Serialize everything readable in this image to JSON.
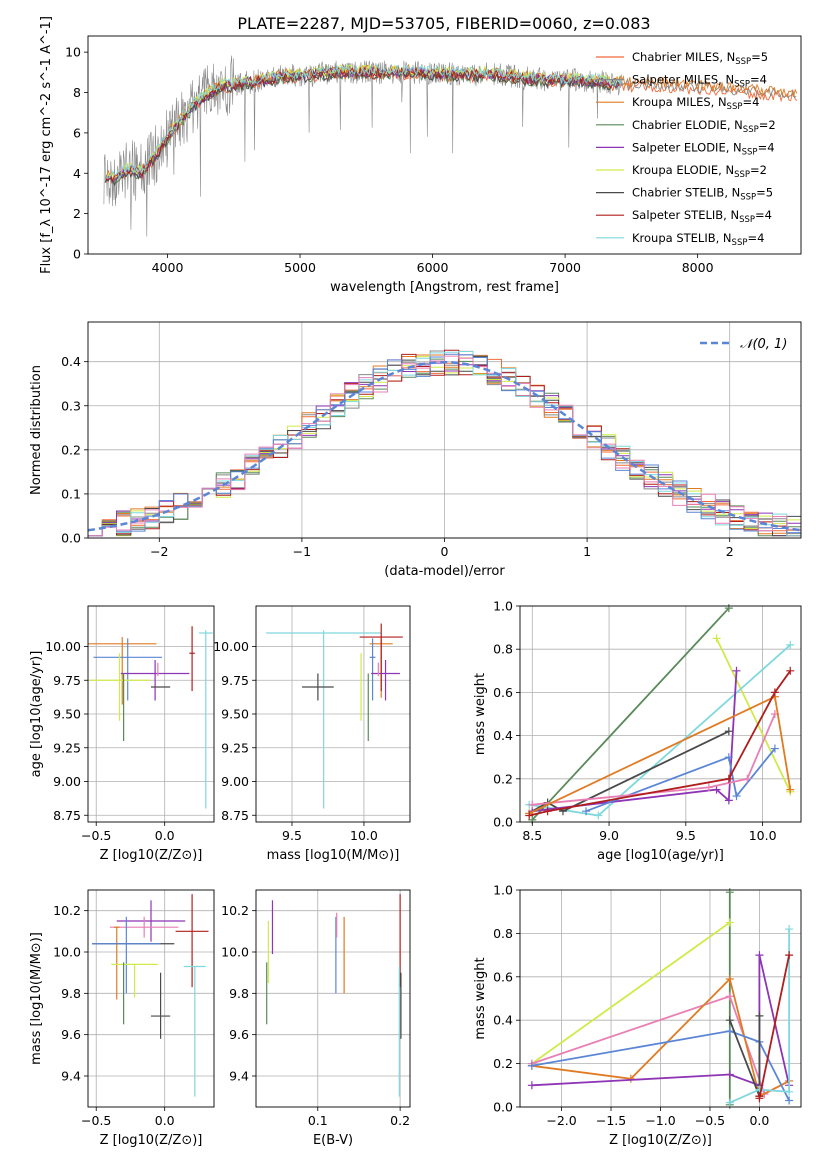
{
  "figure": {
    "title": "PLATE=2287, MJD=53705, FIBERID=0060, z=0.083"
  },
  "palette": {
    "Chabrier MILES": "#f26b3a",
    "Salpeter MILES": "#888888",
    "Kroupa MILES": "#e07b24",
    "Chabrier ELODIE": "#5a8a5a",
    "Salpeter ELODIE": "#8e35b5",
    "Kroupa ELODIE": "#d2e94a",
    "Chabrier STELIB": "#4a4a4a",
    "Salpeter STELIB": "#b01e1e",
    "Kroupa STELIB": "#7fd8dd",
    "blue": "#5b86d6",
    "pink": "#e97fb4"
  },
  "chart_data": [
    {
      "type": "line",
      "panel": "spectrum",
      "title": "PLATE=2287, MJD=53705, FIBERID=0060, z=0.083",
      "xlabel": "wavelength [Angstrom, rest frame]",
      "ylabel": "Flux [f_λ 10^-17 erg cm^-2 s^-1 A^-1]",
      "xlim": [
        3400,
        8780
      ],
      "ylim": [
        0,
        10.8
      ],
      "xticks": [
        4000,
        5000,
        6000,
        7000,
        8000
      ],
      "yticks": [
        0,
        2,
        4,
        6,
        8,
        10
      ],
      "continuum": {
        "x": [
          3500,
          3600,
          3700,
          3800,
          3900,
          4000,
          4100,
          4200,
          4300,
          4400,
          4500,
          4700,
          4900,
          5100,
          5300,
          5500,
          5700,
          5900,
          6100,
          6300,
          6500,
          6700,
          6900,
          7100,
          7300,
          7500,
          7700,
          7900,
          8100,
          8300,
          8500,
          8750
        ],
        "y": [
          4.0,
          3.7,
          4.2,
          4.0,
          4.8,
          5.8,
          6.6,
          7.4,
          7.9,
          8.3,
          8.4,
          8.6,
          8.8,
          8.9,
          9.0,
          9.0,
          9.0,
          9.0,
          8.9,
          8.9,
          8.9,
          8.7,
          8.6,
          8.6,
          8.5,
          8.4,
          8.4,
          8.3,
          8.2,
          8.1,
          8.0,
          7.9
        ]
      },
      "series": [
        {
          "name": "Chabrier MILES",
          "nssp": "5",
          "color_key": "Chabrier MILES"
        },
        {
          "name": "Salpeter MILES",
          "nssp": "4",
          "color_key": "Salpeter MILES"
        },
        {
          "name": "Kroupa MILES",
          "nssp": "4",
          "color_key": "Kroupa MILES"
        },
        {
          "name": "Chabrier ELODIE",
          "nssp": "2",
          "color_key": "Chabrier ELODIE"
        },
        {
          "name": "Salpeter ELODIE",
          "nssp": "4",
          "color_key": "Salpeter ELODIE"
        },
        {
          "name": "Kroupa ELODIE",
          "nssp": "2",
          "color_key": "Kroupa ELODIE"
        },
        {
          "name": "Chabrier STELIB",
          "nssp": "5",
          "color_key": "Chabrier STELIB"
        },
        {
          "name": "Salpeter STELIB",
          "nssp": "4",
          "color_key": "Salpeter STELIB"
        },
        {
          "name": "Kroupa STELIB",
          "nssp": "4",
          "color_key": "Kroupa STELIB"
        }
      ]
    },
    {
      "type": "line",
      "panel": "residuals",
      "xlabel": "(data-model)/error",
      "ylabel": "Normed distribution",
      "xlim": [
        -2.5,
        2.5
      ],
      "ylim": [
        0,
        0.49
      ],
      "xticks": [
        -2,
        -1,
        0,
        1,
        2
      ],
      "yticks": [
        0.0,
        0.1,
        0.2,
        0.3,
        0.4
      ],
      "legend": "𝒩(0, 1)",
      "legend_position": "top-right",
      "bin_edges_start": -2.5,
      "bin_width": 0.1,
      "gaussian": {
        "mu": 0,
        "sigma": 1,
        "amplitude": 0.3989
      }
    },
    {
      "type": "scatter",
      "panel": "age-vs-Z",
      "xlabel": "Z [log10(Z/Z⊙)]",
      "ylabel": "age [log10(age/yr)]",
      "xlim": [
        -0.56,
        0.36
      ],
      "ylim": [
        8.7,
        10.3
      ],
      "xticks": [
        -0.5,
        0.0
      ],
      "yticks": [
        8.75,
        9.0,
        9.25,
        9.5,
        9.75,
        10.0
      ],
      "points": [
        {
          "color_key": "Kroupa MILES",
          "x": -0.31,
          "y": 10.02,
          "xerr": 0.25,
          "yerr": [
            0.45,
            0.05
          ]
        },
        {
          "color_key": "Kroupa STELIB",
          "x": 0.3,
          "y": 10.1,
          "xerr": 0.05,
          "yerr": [
            1.3,
            0.02
          ]
        },
        {
          "color_key": "blue",
          "x": -0.27,
          "y": 9.92,
          "xerr": 0.25,
          "yerr": [
            0.32,
            0.14
          ]
        },
        {
          "color_key": "Salpeter ELODIE",
          "x": -0.07,
          "y": 9.8,
          "xerr": 0.25,
          "yerr": [
            0.2,
            0.1
          ]
        },
        {
          "color_key": "Kroupa ELODIE",
          "x": -0.33,
          "y": 9.75,
          "xerr": 0.22,
          "yerr": [
            0.3,
            0.2
          ]
        },
        {
          "color_key": "Chabrier STELIB",
          "x": -0.03,
          "y": 9.7,
          "xerr": 0.07,
          "yerr": [
            0.0,
            0.0
          ]
        },
        {
          "color_key": "Chabrier ELODIE",
          "x": -0.3,
          "y": 9.55,
          "xerr": 0.0,
          "yerr": [
            0.25,
            0.25
          ]
        },
        {
          "color_key": "Salpeter STELIB",
          "x": 0.2,
          "y": 9.95,
          "xerr": 0.02,
          "yerr": [
            0.28,
            0.2
          ]
        },
        {
          "color_key": "pink",
          "x": -0.05,
          "y": 9.83,
          "xerr": 0.0,
          "yerr": [
            0.05,
            0.05
          ]
        }
      ]
    },
    {
      "type": "scatter",
      "panel": "age-vs-mass",
      "xlabel": "mass [log10(M/M⊙)]",
      "ylabel": "",
      "xlim": [
        9.25,
        10.32
      ],
      "ylim": [
        8.7,
        10.3
      ],
      "xticks": [
        9.5,
        10.0
      ],
      "yticks": [
        8.75,
        9.0,
        9.25,
        9.5,
        9.75,
        10.0
      ],
      "points": [
        {
          "color_key": "Kroupa STELIB",
          "x": 9.72,
          "y": 10.1,
          "xerr": 0.4,
          "yerr": [
            1.3,
            0.02
          ]
        },
        {
          "color_key": "Kroupa MILES",
          "x": 10.12,
          "y": 10.02,
          "xerr": 0.08,
          "yerr": [
            0.4,
            0.03
          ]
        },
        {
          "color_key": "Salpeter STELIB",
          "x": 10.12,
          "y": 10.07,
          "xerr": 0.15,
          "yerr": [
            0.4,
            0.1
          ]
        },
        {
          "color_key": "blue",
          "x": 10.06,
          "y": 9.92,
          "xerr": 0.02,
          "yerr": [
            0.32,
            0.14
          ]
        },
        {
          "color_key": "Salpeter ELODIE",
          "x": 10.15,
          "y": 9.8,
          "xerr": 0.1,
          "yerr": [
            0.2,
            0.1
          ]
        },
        {
          "color_key": "Kroupa ELODIE",
          "x": 9.98,
          "y": 9.75,
          "xerr": 0.0,
          "yerr": [
            0.3,
            0.2
          ]
        },
        {
          "color_key": "Chabrier STELIB",
          "x": 9.68,
          "y": 9.7,
          "xerr": 0.11,
          "yerr": [
            0.1,
            0.1
          ]
        },
        {
          "color_key": "Chabrier ELODIE",
          "x": 10.03,
          "y": 9.55,
          "xerr": 0.0,
          "yerr": [
            0.25,
            0.25
          ]
        },
        {
          "color_key": "pink",
          "x": 10.1,
          "y": 9.83,
          "xerr": 0.0,
          "yerr": [
            0.05,
            0.05
          ]
        }
      ]
    },
    {
      "type": "line",
      "panel": "mass-weight-vs-age",
      "xlabel": "age [log10(age/yr)]",
      "ylabel": "mass weight",
      "xlim": [
        8.42,
        10.25
      ],
      "ylim": [
        0,
        1.0
      ],
      "xticks": [
        8.5,
        9.0,
        9.5,
        10.0
      ],
      "yticks": [
        0.0,
        0.2,
        0.4,
        0.6,
        0.8,
        1.0
      ],
      "series": [
        {
          "color_key": "Chabrier ELODIE",
          "x": [
            8.5,
            9.78
          ],
          "y": [
            0.01,
            0.99
          ]
        },
        {
          "color_key": "Kroupa ELODIE",
          "x": [
            9.7,
            10.18
          ],
          "y": [
            0.85,
            0.14
          ]
        },
        {
          "color_key": "Kroupa STELIB",
          "x": [
            8.48,
            8.93,
            10.18
          ],
          "y": [
            0.08,
            0.03,
            0.82
          ]
        },
        {
          "color_key": "Chabrier STELIB",
          "x": [
            8.5,
            8.6,
            8.7,
            9.78
          ],
          "y": [
            0.05,
            0.09,
            0.05,
            0.42
          ]
        },
        {
          "color_key": "Salpeter ELODIE",
          "x": [
            8.5,
            9.7,
            9.78,
            9.83
          ],
          "y": [
            0.05,
            0.15,
            0.1,
            0.7
          ]
        },
        {
          "color_key": "blue",
          "x": [
            8.85,
            9.78,
            9.83,
            10.08
          ],
          "y": [
            0.05,
            0.3,
            0.12,
            0.34
          ]
        },
        {
          "color_key": "pink",
          "x": [
            8.5,
            9.65,
            9.9,
            10.08
          ],
          "y": [
            0.08,
            0.16,
            0.2,
            0.5
          ]
        },
        {
          "color_key": "Kroupa MILES",
          "x": [
            8.48,
            10.08,
            10.18
          ],
          "y": [
            0.04,
            0.58,
            0.15
          ]
        },
        {
          "color_key": "Salpeter STELIB",
          "x": [
            8.48,
            8.6,
            9.78,
            10.08,
            10.18
          ],
          "y": [
            0.03,
            0.05,
            0.2,
            0.6,
            0.7
          ]
        }
      ]
    },
    {
      "type": "scatter",
      "panel": "mass-vs-Z",
      "xlabel": "Z [log10(Z/Z⊙)]",
      "ylabel": "mass [log10(M/M⊙)]",
      "xlim": [
        -0.56,
        0.36
      ],
      "ylim": [
        9.25,
        10.3
      ],
      "xticks": [
        -0.5,
        0.0
      ],
      "yticks": [
        9.4,
        9.6,
        9.8,
        10.0,
        10.2
      ],
      "points": [
        {
          "color_key": "Salpeter ELODIE",
          "x": -0.1,
          "y": 10.15,
          "xerr": 0.25,
          "yerr": [
            0.1,
            0.1
          ]
        },
        {
          "color_key": "pink",
          "x": -0.15,
          "y": 10.12,
          "xerr": 0.25,
          "yerr": [
            0.05,
            0.05
          ]
        },
        {
          "color_key": "Kroupa MILES",
          "x": -0.35,
          "y": 10.12,
          "xerr": 0.02,
          "yerr": [
            0.35,
            0.0
          ]
        },
        {
          "color_key": "Salpeter STELIB",
          "x": 0.2,
          "y": 10.1,
          "xerr": 0.12,
          "yerr": [
            0.27,
            0.18
          ]
        },
        {
          "color_key": "Chabrier STELIB",
          "x": -0.23,
          "y": 10.04,
          "xerr": 0.3,
          "yerr": [
            0.0,
            0.0
          ]
        },
        {
          "color_key": "blue",
          "x": -0.28,
          "y": 10.04,
          "xerr": 0.25,
          "yerr": [
            0.24,
            0.13
          ]
        },
        {
          "color_key": "Kroupa ELODIE",
          "x": -0.22,
          "y": 9.94,
          "xerr": 0.17,
          "yerr": [
            0.16,
            0.0
          ]
        },
        {
          "color_key": "Kroupa STELIB",
          "x": 0.22,
          "y": 9.93,
          "xerr": 0.08,
          "yerr": [
            0.63,
            0.0
          ]
        },
        {
          "color_key": "Chabrier ELODIE",
          "x": -0.3,
          "y": 9.8,
          "xerr": 0.0,
          "yerr": [
            0.15,
            0.15
          ]
        },
        {
          "color_key": "Chabrier STELIB",
          "x": -0.03,
          "y": 9.69,
          "xerr": 0.07,
          "yerr": [
            0.11,
            0.21
          ]
        }
      ]
    },
    {
      "type": "scatter",
      "panel": "mass-vs-EBV",
      "xlabel": "E(B-V)",
      "ylabel": "",
      "xlim": [
        0.025,
        0.212
      ],
      "ylim": [
        9.25,
        10.3
      ],
      "xticks": [
        0.1,
        0.2
      ],
      "yticks": [
        9.4,
        9.6,
        9.8,
        10.0,
        10.2
      ],
      "points": [
        {
          "color_key": "Salpeter ELODIE",
          "x": 0.045,
          "y": 10.12,
          "xerr": 0.0,
          "yerr": [
            0.13,
            0.13
          ]
        },
        {
          "color_key": "Chabrier ELODIE",
          "x": 0.038,
          "y": 9.8,
          "xerr": 0.0,
          "yerr": [
            0.15,
            0.15
          ]
        },
        {
          "color_key": "Kroupa ELODIE",
          "x": 0.04,
          "y": 10.05,
          "xerr": 0.0,
          "yerr": [
            0.2,
            0.1
          ]
        },
        {
          "color_key": "blue",
          "x": 0.122,
          "y": 10.04,
          "xerr": 0.0,
          "yerr": [
            0.24,
            0.13
          ]
        },
        {
          "color_key": "pink",
          "x": 0.123,
          "y": 10.12,
          "xerr": 0.0,
          "yerr": [
            0.05,
            0.07
          ]
        },
        {
          "color_key": "Kroupa MILES",
          "x": 0.132,
          "y": 10.04,
          "xerr": 0.0,
          "yerr": [
            0.24,
            0.13
          ]
        },
        {
          "color_key": "Salpeter STELIB",
          "x": 0.2,
          "y": 10.1,
          "xerr": 0.0,
          "yerr": [
            0.27,
            0.18
          ]
        },
        {
          "color_key": "Kroupa STELIB",
          "x": 0.199,
          "y": 9.93,
          "xerr": 0.0,
          "yerr": [
            0.63,
            0.0
          ]
        },
        {
          "color_key": "Chabrier STELIB",
          "x": 0.201,
          "y": 9.75,
          "xerr": 0.0,
          "yerr": [
            0.17,
            0.15
          ]
        }
      ]
    },
    {
      "type": "line",
      "panel": "mass-weight-vs-Z",
      "xlabel": "Z [log10(Z/Z⊙)]",
      "ylabel": "mass weight",
      "xlim": [
        -2.42,
        0.42
      ],
      "ylim": [
        0,
        1.0
      ],
      "xticks": [
        -2.0,
        -1.5,
        -1.0,
        -0.5,
        0.0
      ],
      "yticks": [
        0.0,
        0.2,
        0.4,
        0.6,
        0.8,
        1.0
      ],
      "series": [
        {
          "color_key": "Chabrier ELODIE",
          "x": [
            -0.3,
            -0.3
          ],
          "y": [
            0.01,
            0.99
          ]
        },
        {
          "color_key": "Kroupa ELODIE",
          "x": [
            -2.3,
            -0.3
          ],
          "y": [
            0.2,
            0.85
          ]
        },
        {
          "color_key": "pink",
          "x": [
            -2.3,
            -0.3,
            0.05,
            0.3
          ],
          "y": [
            0.2,
            0.51,
            0.06,
            0.12
          ]
        },
        {
          "color_key": "Kroupa MILES",
          "x": [
            -2.3,
            -1.3,
            -0.3,
            0.0,
            0.3
          ],
          "y": [
            0.19,
            0.13,
            0.59,
            0.05,
            0.12
          ]
        },
        {
          "color_key": "blue",
          "x": [
            -2.3,
            -0.3,
            0.0,
            0.3
          ],
          "y": [
            0.19,
            0.35,
            0.3,
            0.03
          ]
        },
        {
          "color_key": "Salpeter ELODIE",
          "x": [
            -2.3,
            -0.3,
            0.0,
            0.0,
            0.3
          ],
          "y": [
            0.1,
            0.15,
            0.1,
            0.7,
            0.1
          ]
        },
        {
          "color_key": "Chabrier STELIB",
          "x": [
            -0.3,
            0.0,
            0.0
          ],
          "y": [
            0.4,
            0.05,
            0.42
          ]
        },
        {
          "color_key": "Kroupa STELIB",
          "x": [
            -0.3,
            0.0,
            0.3,
            0.3
          ],
          "y": [
            0.02,
            0.08,
            0.07,
            0.82
          ]
        },
        {
          "color_key": "Salpeter STELIB",
          "x": [
            0.0,
            0.0,
            0.3
          ],
          "y": [
            0.05,
            0.04,
            0.7
          ]
        }
      ]
    }
  ]
}
